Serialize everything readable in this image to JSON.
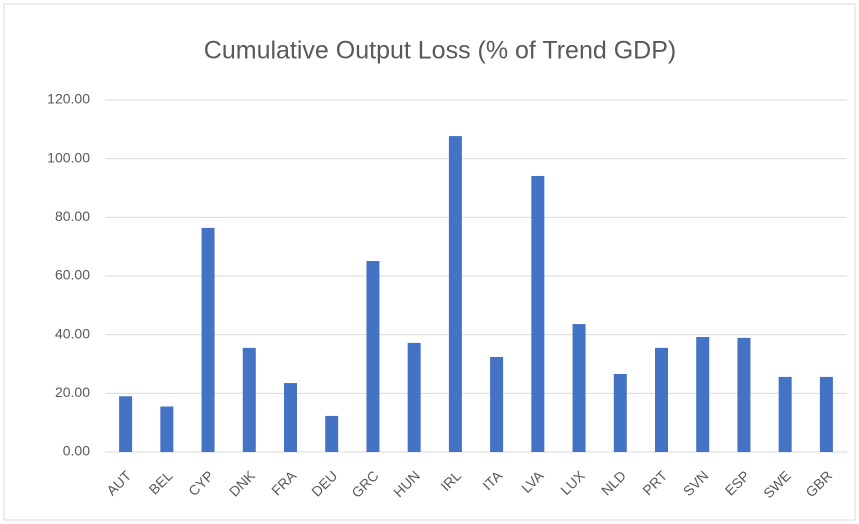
{
  "chart_data": {
    "type": "bar",
    "title": "Cumulative Output Loss (% of Trend GDP)",
    "categories": [
      "AUT",
      "BEL",
      "CYP",
      "DNK",
      "FRA",
      "DEU",
      "GRC",
      "HUN",
      "IRL",
      "ITA",
      "LVA",
      "LUX",
      "NLD",
      "PRT",
      "SVN",
      "ESP",
      "SWE",
      "GBR"
    ],
    "values": [
      19.0,
      15.5,
      76.4,
      35.5,
      23.5,
      12.3,
      65.1,
      37.2,
      107.7,
      32.4,
      94.1,
      43.6,
      26.6,
      35.5,
      39.2,
      38.9,
      25.6,
      25.6
    ],
    "color": "#4472c4",
    "ylim": [
      0,
      120
    ],
    "yticks": [
      {
        "value": 0,
        "label": "0.00"
      },
      {
        "value": 20,
        "label": "20.00"
      },
      {
        "value": 40,
        "label": "40.00"
      },
      {
        "value": 60,
        "label": "60.00"
      },
      {
        "value": 80,
        "label": "80.00"
      },
      {
        "value": 100,
        "label": "100.00"
      },
      {
        "value": 120,
        "label": "120.00"
      }
    ],
    "grid": true
  }
}
